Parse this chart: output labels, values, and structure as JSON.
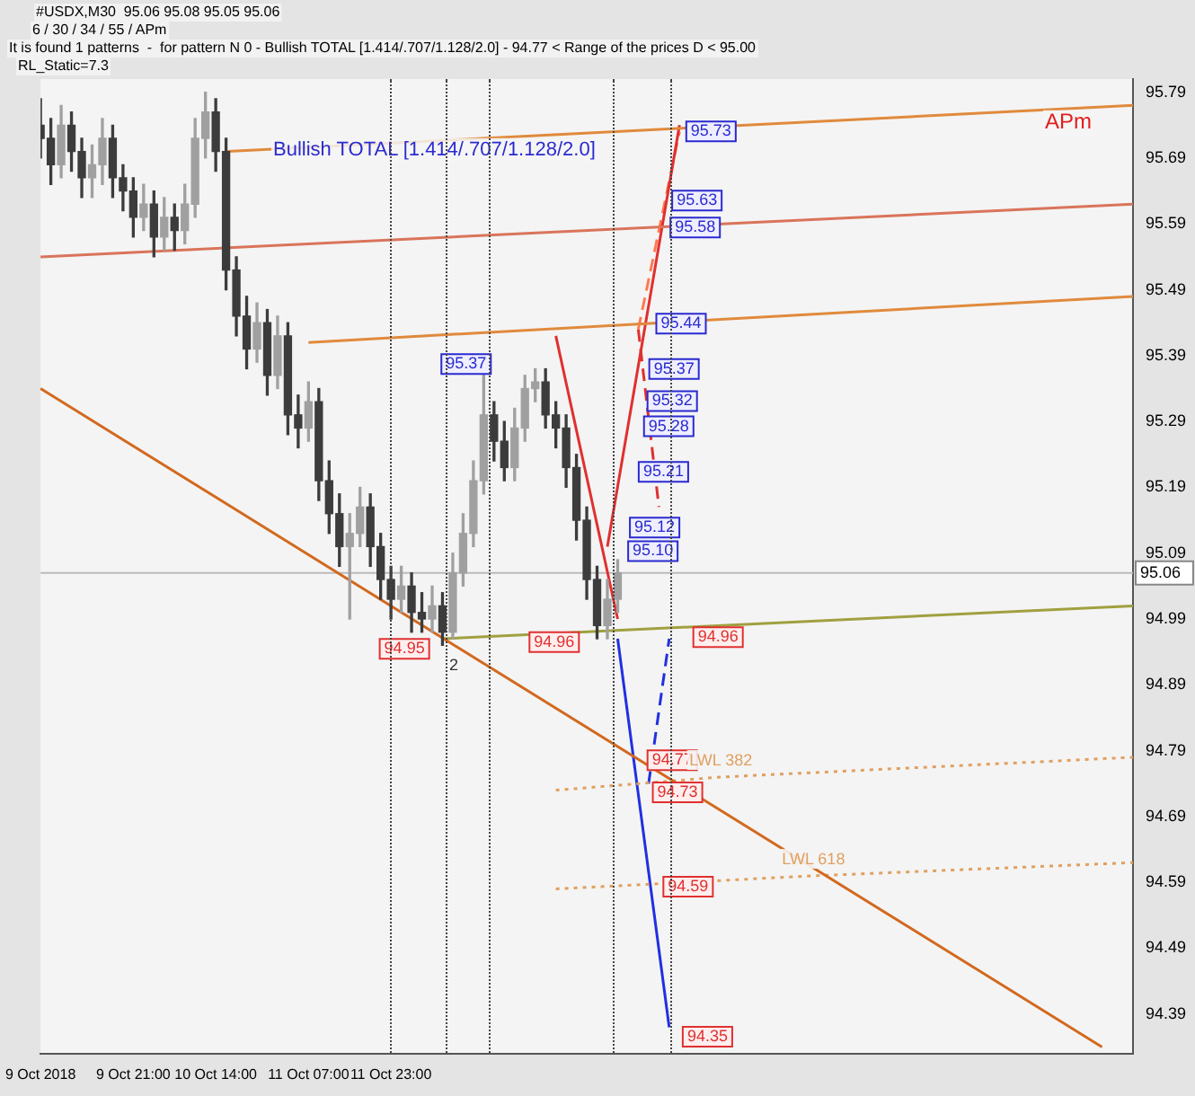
{
  "chart_data": {
    "type": "candlestick",
    "annotations": [
      "#USDX,M30  95.06 95.08 95.05 95.06",
      "6 / 30 / 34 / 55 / APm",
      "It is found 1 patterns  -  for pattern N 0 - Bullish TOTAL [1.414/.707/1.128/2.0] - 94.77 < Range of the prices D < 95.00",
      "RL_Static=7.3",
      "Bullish TOTAL [1.414/.707/1.128/2.0]",
      "APm",
      "95.73",
      "95.63",
      "95.58",
      "95.44",
      "95.37",
      "95.32",
      "95.28",
      "95.21",
      "95.12",
      "95.10",
      "95.37",
      "94.95",
      "94.96",
      "94.96",
      "94.77",
      "94.73",
      "94.59",
      "94.35",
      "2"
    ],
    "categories": [
      "9 Oct 2018",
      null,
      null,
      null,
      null,
      null,
      null,
      null,
      null,
      "9 Oct 21:00",
      null,
      null,
      null,
      null,
      null,
      null,
      null,
      "10 Oct 14:00",
      null,
      null,
      null,
      null,
      null,
      null,
      null,
      null,
      "11 Oct 07:00",
      null,
      null,
      null,
      null,
      null,
      null,
      null,
      "11 Oct 23:00",
      null,
      null,
      null,
      null,
      null,
      null,
      null,
      null,
      null,
      null,
      null,
      null,
      null,
      null,
      null,
      null,
      null,
      null,
      null,
      null,
      null,
      null,
      null,
      null,
      null,
      null,
      null,
      null,
      null,
      null,
      null,
      null,
      null,
      null,
      null,
      null,
      null,
      null,
      null,
      null,
      null,
      null,
      null,
      null,
      null,
      null,
      null,
      null,
      null,
      null,
      null,
      null,
      null,
      null,
      null,
      null,
      null,
      null,
      null,
      null,
      null,
      null,
      null,
      null,
      null,
      null,
      null,
      null,
      null,
      null,
      null,
      null
    ],
    "ohlc": [
      [
        95.74,
        95.78,
        95.69,
        95.72
      ],
      [
        95.72,
        95.75,
        95.65,
        95.68
      ],
      [
        95.68,
        95.77,
        95.66,
        95.74
      ],
      [
        95.74,
        95.76,
        95.67,
        95.7
      ],
      [
        95.7,
        95.72,
        95.63,
        95.66
      ],
      [
        95.66,
        95.71,
        95.63,
        95.68
      ],
      [
        95.68,
        95.75,
        95.65,
        95.72
      ],
      [
        95.72,
        95.74,
        95.63,
        95.66
      ],
      [
        95.66,
        95.68,
        95.61,
        95.64
      ],
      [
        95.64,
        95.66,
        95.57,
        95.6
      ],
      [
        95.6,
        95.65,
        95.58,
        95.62
      ],
      [
        95.62,
        95.64,
        95.54,
        95.57
      ],
      [
        95.57,
        95.63,
        95.55,
        95.6
      ],
      [
        95.6,
        95.62,
        95.55,
        95.58
      ],
      [
        95.58,
        95.65,
        95.56,
        95.62
      ],
      [
        95.62,
        95.75,
        95.6,
        95.72
      ],
      [
        95.72,
        95.79,
        95.69,
        95.76
      ],
      [
        95.76,
        95.78,
        95.67,
        95.7
      ],
      [
        95.7,
        95.72,
        95.49,
        95.52
      ],
      [
        95.52,
        95.54,
        95.42,
        95.45
      ],
      [
        95.45,
        95.48,
        95.37,
        95.4
      ],
      [
        95.4,
        95.47,
        95.38,
        95.44
      ],
      [
        95.44,
        95.46,
        95.33,
        95.36
      ],
      [
        95.36,
        95.45,
        95.34,
        95.42
      ],
      [
        95.42,
        95.44,
        95.27,
        95.3
      ],
      [
        95.3,
        95.33,
        95.25,
        95.28
      ],
      [
        95.28,
        95.35,
        95.26,
        95.32
      ],
      [
        95.32,
        95.34,
        95.17,
        95.2
      ],
      [
        95.2,
        95.23,
        95.12,
        95.15
      ],
      [
        95.15,
        95.18,
        95.07,
        95.1
      ],
      [
        95.1,
        95.15,
        94.99,
        95.12
      ],
      [
        95.12,
        95.19,
        95.1,
        95.16
      ],
      [
        95.16,
        95.18,
        95.07,
        95.1
      ],
      [
        95.1,
        95.12,
        95.02,
        95.05
      ],
      [
        95.05,
        95.07,
        94.99,
        95.02
      ],
      [
        95.02,
        95.07,
        95,
        95.04
      ],
      [
        95.04,
        95.06,
        94.97,
        95
      ],
      [
        95,
        95.03,
        94.97,
        94.99
      ],
      [
        94.99,
        95.04,
        94.97,
        95.01
      ],
      [
        95.01,
        95.03,
        94.95,
        94.97
      ],
      [
        94.97,
        95.09,
        94.96,
        95.06
      ],
      [
        95.06,
        95.15,
        95.04,
        95.12
      ],
      [
        95.12,
        95.23,
        95.1,
        95.2
      ],
      [
        95.2,
        95.37,
        95.18,
        95.3
      ],
      [
        95.3,
        95.32,
        95.23,
        95.26
      ],
      [
        95.26,
        95.29,
        95.2,
        95.22
      ],
      [
        95.22,
        95.31,
        95.2,
        95.28
      ],
      [
        95.28,
        95.36,
        95.26,
        95.34
      ],
      [
        95.34,
        95.37,
        95.32,
        95.35
      ],
      [
        95.35,
        95.37,
        95.28,
        95.3
      ],
      [
        95.3,
        95.32,
        95.25,
        95.28
      ],
      [
        95.28,
        95.3,
        95.19,
        95.22
      ],
      [
        95.22,
        95.24,
        95.11,
        95.14
      ],
      [
        95.14,
        95.16,
        95.02,
        95.05
      ],
      [
        95.05,
        95.07,
        94.96,
        94.98
      ],
      [
        94.98,
        95.05,
        94.96,
        95.02
      ],
      [
        95.02,
        95.08,
        95,
        95.06
      ],
      null,
      null,
      null,
      null,
      null,
      null,
      null,
      null,
      null,
      null,
      null,
      null,
      null,
      null,
      null,
      null,
      null,
      null,
      null,
      null,
      null,
      null,
      null,
      null,
      null,
      null,
      null,
      null,
      null,
      null,
      null,
      null,
      null,
      null,
      null,
      null,
      null,
      null,
      null,
      null,
      null,
      null,
      null,
      null,
      null,
      null,
      null,
      null,
      null,
      null
    ],
    "colors": [
      "#3c3c3c",
      "#3c3c3c",
      "#a0a0a0",
      "#3c3c3c",
      "#3c3c3c",
      "#a0a0a0",
      "#a0a0a0",
      "#3c3c3c",
      "#3c3c3c",
      "#3c3c3c",
      "#a0a0a0",
      "#3c3c3c",
      "#a0a0a0",
      "#3c3c3c",
      "#a0a0a0",
      "#a0a0a0",
      "#a0a0a0",
      "#3c3c3c",
      "#3c3c3c",
      "#3c3c3c",
      "#3c3c3c",
      "#a0a0a0",
      "#3c3c3c",
      "#a0a0a0",
      "#3c3c3c",
      "#3c3c3c",
      "#a0a0a0",
      "#3c3c3c",
      "#3c3c3c",
      "#3c3c3c",
      "#a0a0a0",
      "#a0a0a0",
      "#3c3c3c",
      "#3c3c3c",
      "#3c3c3c",
      "#a0a0a0",
      "#3c3c3c",
      "#3c3c3c",
      "#a0a0a0",
      "#3c3c3c",
      "#a0a0a0",
      "#a0a0a0",
      "#a0a0a0",
      "#a0a0a0",
      "#3c3c3c",
      "#3c3c3c",
      "#a0a0a0",
      "#a0a0a0",
      "#a0a0a0",
      "#3c3c3c",
      "#3c3c3c",
      "#3c3c3c",
      "#3c3c3c",
      "#3c3c3c",
      "#3c3c3c",
      "#a0a0a0",
      "#a0a0a0",
      null,
      null,
      null,
      null,
      null,
      null,
      null,
      null,
      null,
      null,
      null,
      null,
      null,
      null,
      null,
      null,
      null,
      null,
      null,
      null,
      null,
      null,
      null,
      null,
      null,
      null,
      null,
      null,
      null,
      null,
      null,
      null,
      null,
      null,
      null,
      null,
      null,
      null,
      null,
      null,
      null,
      null,
      null,
      null,
      null,
      null,
      null,
      null,
      null,
      null
    ],
    "ylim": [
      94.33,
      95.81
    ],
    "yticks": [
      95.79,
      95.69,
      95.59,
      95.49,
      95.39,
      95.29,
      95.19,
      95.09,
      94.99,
      94.89,
      94.79,
      94.69,
      94.59,
      94.49,
      94.39
    ],
    "ref_lines": [
      {
        "axis": "y",
        "value": 95.06,
        "label": "95.06",
        "color": "#bbbbbb"
      }
    ],
    "series": [
      {
        "type": "line",
        "color": "#d2691e",
        "line_style": "solid",
        "values": [
          95.34,
          null,
          null,
          null,
          null,
          null,
          null,
          null,
          null,
          null,
          null,
          null,
          null,
          null,
          null,
          null,
          null,
          null,
          null,
          null,
          null,
          null,
          null,
          null,
          null,
          null,
          null,
          null,
          null,
          null,
          null,
          null,
          null,
          null,
          null,
          null,
          null,
          null,
          null,
          null,
          null,
          null,
          null,
          null,
          null,
          null,
          null,
          null,
          null,
          null,
          null,
          null,
          null,
          null,
          null,
          null,
          null,
          null,
          null,
          null,
          null,
          null,
          null,
          null,
          null,
          null,
          null,
          null,
          null,
          null,
          null,
          null,
          null,
          null,
          null,
          null,
          null,
          null,
          null,
          null,
          null,
          null,
          null,
          null,
          null,
          null,
          null,
          null,
          null,
          null,
          null,
          null,
          null,
          null,
          null,
          null,
          null,
          null,
          null,
          null,
          null,
          null,
          null,
          94.34,
          null,
          null,
          null
        ]
      },
      {
        "type": "line",
        "color": "#e08a3c",
        "line_style": "solid",
        "values": [
          null,
          null,
          null,
          null,
          null,
          null,
          null,
          null,
          null,
          null,
          null,
          null,
          null,
          null,
          null,
          null,
          null,
          null,
          95.7,
          null,
          null,
          null,
          null,
          null,
          null,
          null,
          null,
          null,
          null,
          null,
          null,
          null,
          null,
          null,
          null,
          null,
          null,
          null,
          null,
          null,
          null,
          null,
          null,
          null,
          null,
          null,
          null,
          null,
          null,
          null,
          null,
          null,
          null,
          null,
          null,
          null,
          null,
          null,
          null,
          null,
          null,
          null,
          null,
          null,
          null,
          null,
          null,
          null,
          null,
          null,
          null,
          null,
          null,
          null,
          null,
          null,
          null,
          null,
          null,
          null,
          null,
          null,
          null,
          null,
          null,
          null,
          null,
          null,
          null,
          null,
          null,
          null,
          null,
          null,
          null,
          null,
          null,
          null,
          null,
          null,
          null,
          null,
          null,
          null,
          null,
          null,
          95.77
        ]
      },
      {
        "type": "line",
        "color": "#d9745a",
        "line_style": "solid",
        "values": [
          95.54,
          null,
          null,
          null,
          null,
          null,
          null,
          null,
          null,
          null,
          null,
          null,
          null,
          null,
          null,
          null,
          null,
          null,
          null,
          null,
          null,
          null,
          null,
          null,
          null,
          null,
          null,
          null,
          null,
          null,
          null,
          null,
          null,
          null,
          null,
          null,
          null,
          null,
          null,
          null,
          null,
          null,
          null,
          null,
          null,
          null,
          null,
          null,
          null,
          null,
          null,
          null,
          null,
          null,
          null,
          null,
          null,
          null,
          null,
          null,
          null,
          null,
          null,
          null,
          null,
          null,
          null,
          null,
          null,
          null,
          null,
          null,
          null,
          null,
          null,
          null,
          null,
          null,
          null,
          null,
          null,
          null,
          null,
          null,
          null,
          null,
          null,
          null,
          null,
          null,
          null,
          null,
          null,
          null,
          null,
          null,
          null,
          null,
          null,
          null,
          null,
          null,
          null,
          null,
          null,
          null,
          95.62
        ]
      },
      {
        "type": "line",
        "color": "#e08a3c",
        "line_style": "solid",
        "values": [
          null,
          null,
          null,
          null,
          null,
          null,
          null,
          null,
          null,
          null,
          null,
          null,
          null,
          null,
          null,
          null,
          null,
          null,
          null,
          null,
          null,
          null,
          null,
          null,
          null,
          null,
          95.41,
          null,
          null,
          null,
          null,
          null,
          null,
          null,
          null,
          null,
          null,
          null,
          null,
          null,
          null,
          null,
          null,
          null,
          null,
          null,
          null,
          null,
          null,
          null,
          null,
          null,
          null,
          null,
          null,
          null,
          null,
          null,
          null,
          null,
          null,
          null,
          null,
          null,
          null,
          null,
          null,
          null,
          null,
          null,
          null,
          null,
          null,
          null,
          null,
          null,
          null,
          null,
          null,
          null,
          null,
          null,
          null,
          null,
          null,
          null,
          null,
          null,
          null,
          null,
          null,
          null,
          null,
          null,
          null,
          null,
          null,
          null,
          null,
          null,
          null,
          null,
          null,
          null,
          null,
          null,
          95.48
        ]
      },
      {
        "type": "line",
        "color": "#a0a040",
        "line_style": "solid",
        "values": [
          null,
          null,
          null,
          null,
          null,
          null,
          null,
          null,
          null,
          null,
          null,
          null,
          null,
          null,
          null,
          null,
          null,
          null,
          null,
          null,
          null,
          null,
          null,
          null,
          null,
          null,
          null,
          null,
          null,
          null,
          null,
          null,
          null,
          null,
          null,
          null,
          null,
          null,
          null,
          94.96,
          null,
          null,
          null,
          null,
          null,
          null,
          null,
          null,
          null,
          null,
          null,
          null,
          null,
          null,
          null,
          null,
          null,
          null,
          null,
          null,
          null,
          null,
          null,
          null,
          null,
          null,
          null,
          null,
          null,
          null,
          null,
          null,
          null,
          null,
          null,
          null,
          null,
          null,
          null,
          null,
          null,
          null,
          null,
          null,
          null,
          null,
          null,
          null,
          null,
          null,
          null,
          null,
          null,
          null,
          null,
          null,
          null,
          null,
          null,
          null,
          null,
          null,
          null,
          null,
          null,
          null,
          95.01
        ]
      },
      {
        "type": "line",
        "name": "LWL 382",
        "color": "#e0a060",
        "line_style": "dotted",
        "values": [
          null,
          null,
          null,
          null,
          null,
          null,
          null,
          null,
          null,
          null,
          null,
          null,
          null,
          null,
          null,
          null,
          null,
          null,
          null,
          null,
          null,
          null,
          null,
          null,
          null,
          null,
          null,
          null,
          null,
          null,
          null,
          null,
          null,
          null,
          null,
          null,
          null,
          null,
          null,
          null,
          null,
          null,
          null,
          null,
          null,
          null,
          null,
          null,
          null,
          null,
          94.73,
          null,
          null,
          null,
          null,
          null,
          null,
          null,
          null,
          null,
          null,
          null,
          null,
          null,
          null,
          null,
          94.75,
          null,
          null,
          null,
          null,
          null,
          null,
          null,
          null,
          null,
          null,
          null,
          null,
          null,
          null,
          null,
          null,
          null,
          null,
          null,
          null,
          null,
          null,
          null,
          null,
          null,
          null,
          null,
          null,
          null,
          null,
          null,
          null,
          null,
          null,
          null,
          null,
          null,
          null,
          null,
          94.78
        ]
      },
      {
        "type": "line",
        "name": "LWL 618",
        "color": "#e0a060",
        "line_style": "dotted",
        "values": [
          null,
          null,
          null,
          null,
          null,
          null,
          null,
          null,
          null,
          null,
          null,
          null,
          null,
          null,
          null,
          null,
          null,
          null,
          null,
          null,
          null,
          null,
          null,
          null,
          null,
          null,
          null,
          null,
          null,
          null,
          null,
          null,
          null,
          null,
          null,
          null,
          null,
          null,
          null,
          null,
          null,
          null,
          null,
          null,
          null,
          null,
          null,
          null,
          null,
          null,
          94.58,
          null,
          null,
          null,
          null,
          null,
          null,
          null,
          null,
          null,
          null,
          null,
          null,
          null,
          null,
          null,
          null,
          null,
          null,
          null,
          null,
          null,
          null,
          null,
          null,
          94.6,
          null,
          null,
          null,
          null,
          null,
          null,
          null,
          null,
          null,
          null,
          null,
          null,
          null,
          null,
          null,
          null,
          null,
          null,
          null,
          null,
          null,
          null,
          null,
          null,
          null,
          null,
          null,
          null,
          null,
          null,
          94.62
        ]
      },
      {
        "type": "line",
        "color": "#e03030",
        "line_style": "solid",
        "values": [
          null,
          null,
          null,
          null,
          null,
          null,
          null,
          null,
          null,
          null,
          null,
          null,
          null,
          null,
          null,
          null,
          null,
          null,
          null,
          null,
          null,
          null,
          null,
          null,
          null,
          null,
          null,
          null,
          null,
          null,
          null,
          null,
          null,
          null,
          null,
          null,
          null,
          null,
          null,
          null,
          null,
          null,
          null,
          null,
          null,
          null,
          null,
          null,
          null,
          null,
          95.42,
          null,
          null,
          null,
          null,
          null,
          94.99,
          null,
          null,
          null,
          null,
          null,
          null,
          null,
          null,
          null,
          null,
          null,
          null,
          null,
          null,
          null,
          null,
          null,
          null,
          null,
          null,
          null,
          null,
          null,
          null,
          null,
          null,
          null,
          null,
          null,
          null,
          null,
          null,
          null,
          null,
          null,
          null,
          null,
          null,
          null,
          null,
          null,
          null,
          null,
          null,
          null,
          null,
          null,
          null,
          null,
          null
        ]
      },
      {
        "type": "line",
        "color": "#e03030",
        "line_style": "solid",
        "values": [
          null,
          null,
          null,
          null,
          null,
          null,
          null,
          null,
          null,
          null,
          null,
          null,
          null,
          null,
          null,
          null,
          null,
          null,
          null,
          null,
          null,
          null,
          null,
          null,
          null,
          null,
          null,
          null,
          null,
          null,
          null,
          null,
          null,
          null,
          null,
          null,
          null,
          null,
          null,
          null,
          null,
          null,
          null,
          null,
          null,
          null,
          null,
          null,
          null,
          null,
          null,
          null,
          null,
          null,
          null,
          95.1,
          null,
          null,
          null,
          null,
          null,
          null,
          95.74,
          null,
          null,
          null,
          null,
          null,
          null,
          null,
          null,
          null,
          null,
          null,
          null,
          null,
          null,
          null,
          null,
          null,
          null,
          null,
          null,
          null,
          null,
          null,
          null,
          null,
          null,
          null,
          null,
          null,
          null,
          null,
          null,
          null,
          null,
          null,
          null,
          null,
          null,
          null,
          null,
          null,
          null,
          null,
          null
        ]
      },
      {
        "type": "line",
        "color": "#ff7a50",
        "line_style": "dashed",
        "values": [
          null,
          null,
          null,
          null,
          null,
          null,
          null,
          null,
          null,
          null,
          null,
          null,
          null,
          null,
          null,
          null,
          null,
          null,
          null,
          null,
          null,
          null,
          null,
          null,
          null,
          null,
          null,
          null,
          null,
          null,
          null,
          null,
          null,
          null,
          null,
          null,
          null,
          null,
          null,
          null,
          null,
          null,
          null,
          null,
          null,
          null,
          null,
          null,
          null,
          null,
          null,
          null,
          null,
          null,
          null,
          null,
          null,
          null,
          95.43,
          null,
          null,
          null,
          95.73,
          null,
          null,
          null,
          null,
          null,
          null,
          null,
          null,
          null,
          null,
          null,
          null,
          null,
          null,
          null,
          null,
          null,
          null,
          null,
          null,
          null,
          null,
          null,
          null,
          null,
          null,
          null,
          null,
          null,
          null,
          null,
          null,
          null,
          null,
          null,
          null,
          null,
          null,
          null,
          null,
          null,
          null,
          null,
          null
        ]
      },
      {
        "type": "line",
        "color": "#e03030",
        "line_style": "dashed",
        "values": [
          null,
          null,
          null,
          null,
          null,
          null,
          null,
          null,
          null,
          null,
          null,
          null,
          null,
          null,
          null,
          null,
          null,
          null,
          null,
          null,
          null,
          null,
          null,
          null,
          null,
          null,
          null,
          null,
          null,
          null,
          null,
          null,
          null,
          null,
          null,
          null,
          null,
          null,
          null,
          null,
          null,
          null,
          null,
          null,
          null,
          null,
          null,
          null,
          null,
          null,
          null,
          null,
          null,
          null,
          null,
          null,
          null,
          null,
          95.43,
          null,
          95.16,
          null,
          null,
          null,
          null,
          null,
          null,
          null,
          null,
          null,
          null,
          null,
          null,
          null,
          null,
          null,
          null,
          null,
          null,
          null,
          null,
          null,
          null,
          null,
          null,
          null,
          null,
          null,
          null,
          null,
          null,
          null,
          null,
          null,
          null,
          null,
          null,
          null,
          null,
          null,
          null,
          null,
          null,
          null,
          null,
          null,
          null
        ]
      },
      {
        "type": "line",
        "color": "#2030e0",
        "line_style": "solid",
        "values": [
          null,
          null,
          null,
          null,
          null,
          null,
          null,
          null,
          null,
          null,
          null,
          null,
          null,
          null,
          null,
          null,
          null,
          null,
          null,
          null,
          null,
          null,
          null,
          null,
          null,
          null,
          null,
          null,
          null,
          null,
          null,
          null,
          null,
          null,
          null,
          null,
          null,
          null,
          null,
          null,
          null,
          null,
          null,
          null,
          null,
          null,
          null,
          null,
          null,
          null,
          null,
          null,
          null,
          null,
          null,
          null,
          94.96,
          null,
          null,
          null,
          null,
          94.37,
          null,
          null,
          null,
          null,
          null,
          null,
          null,
          null,
          null,
          null,
          null,
          null,
          null,
          null,
          null,
          null,
          null,
          null,
          null,
          null,
          null,
          null,
          null,
          null,
          null,
          null,
          null,
          null,
          null,
          null,
          null,
          null,
          null,
          null,
          null,
          null,
          null,
          null,
          null,
          null,
          null,
          null,
          null,
          null,
          null
        ]
      },
      {
        "type": "line",
        "color": "#2030e0",
        "line_style": "dashed",
        "values": [
          null,
          null,
          null,
          null,
          null,
          null,
          null,
          null,
          null,
          null,
          null,
          null,
          null,
          null,
          null,
          null,
          null,
          null,
          null,
          null,
          null,
          null,
          null,
          null,
          null,
          null,
          null,
          null,
          null,
          null,
          null,
          null,
          null,
          null,
          null,
          null,
          null,
          null,
          null,
          null,
          null,
          null,
          null,
          null,
          null,
          null,
          null,
          null,
          null,
          null,
          null,
          null,
          null,
          null,
          null,
          null,
          null,
          null,
          null,
          94.74,
          null,
          94.96,
          null,
          null,
          null,
          null,
          null,
          null,
          null,
          null,
          null,
          null,
          null,
          null,
          null,
          null,
          null,
          null,
          null,
          null,
          null,
          null,
          null,
          null,
          null,
          null,
          null,
          null,
          null,
          null,
          null,
          null,
          null,
          null,
          null,
          null,
          null,
          null,
          null,
          null,
          null,
          null,
          null,
          null,
          null,
          null,
          null
        ]
      }
    ]
  }
}
